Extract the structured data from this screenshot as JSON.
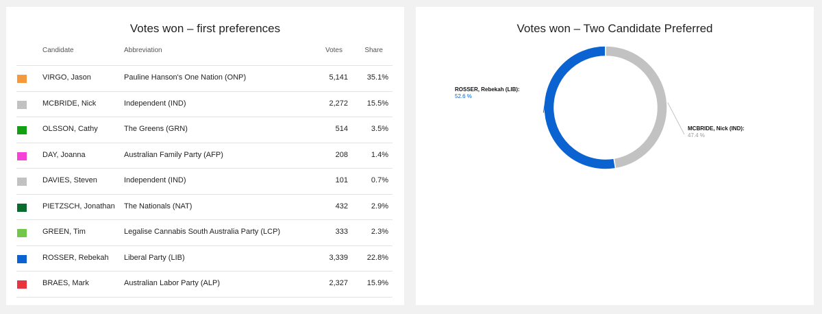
{
  "left": {
    "title": "Votes won – first preferences",
    "headers": {
      "candidate": "Candidate",
      "abbreviation": "Abbreviation",
      "votes": "Votes",
      "share": "Share"
    },
    "rows": [
      {
        "name": "VIRGO, Jason",
        "party": "Pauline Hanson's One Nation (ONP)",
        "votes": "5,141",
        "share": "35.1%",
        "color": "#f59a3c"
      },
      {
        "name": "MCBRIDE, Nick",
        "party": "Independent (IND)",
        "votes": "2,272",
        "share": "15.5%",
        "color": "#c2c2c2"
      },
      {
        "name": "OLSSON, Cathy",
        "party": "The Greens (GRN)",
        "votes": "514",
        "share": "3.5%",
        "color": "#12a012"
      },
      {
        "name": "DAY, Joanna",
        "party": "Australian Family Party (AFP)",
        "votes": "208",
        "share": "1.4%",
        "color": "#f541d6"
      },
      {
        "name": "DAVIES, Steven",
        "party": "Independent (IND)",
        "votes": "101",
        "share": "0.7%",
        "color": "#c2c2c2"
      },
      {
        "name": "PIETZSCH, Jonathan",
        "party": "The Nationals (NAT)",
        "votes": "432",
        "share": "2.9%",
        "color": "#0a6b30"
      },
      {
        "name": "GREEN, Tim",
        "party": "Legalise Cannabis South Australia Party (LCP)",
        "votes": "333",
        "share": "2.3%",
        "color": "#72c64a"
      },
      {
        "name": "ROSSER, Rebekah",
        "party": "Liberal Party (LIB)",
        "votes": "3,339",
        "share": "22.8%",
        "color": "#0a63d0"
      },
      {
        "name": "BRAES, Mark",
        "party": "Australian Labor Party (ALP)",
        "votes": "2,327",
        "share": "15.9%",
        "color": "#e8343f"
      }
    ]
  },
  "right": {
    "title": "Votes won – Two Candidate Preferred"
  },
  "chart_data": [
    {
      "type": "table",
      "title": "Votes won – first preferences",
      "columns": [
        "Candidate",
        "Abbreviation",
        "Votes",
        "Share"
      ],
      "rows": [
        [
          "VIRGO, Jason",
          "Pauline Hanson's One Nation (ONP)",
          5141,
          35.1
        ],
        [
          "MCBRIDE, Nick",
          "Independent (IND)",
          2272,
          15.5
        ],
        [
          "OLSSON, Cathy",
          "The Greens (GRN)",
          514,
          3.5
        ],
        [
          "DAY, Joanna",
          "Australian Family Party (AFP)",
          208,
          1.4
        ],
        [
          "DAVIES, Steven",
          "Independent (IND)",
          101,
          0.7
        ],
        [
          "PIETZSCH, Jonathan",
          "The Nationals (NAT)",
          432,
          2.9
        ],
        [
          "GREEN, Tim",
          "Legalise Cannabis South Australia Party (LCP)",
          333,
          2.3
        ],
        [
          "ROSSER, Rebekah",
          "Liberal Party (LIB)",
          3339,
          22.8
        ],
        [
          "BRAES, Mark",
          "Australian Labor Party (ALP)",
          2327,
          15.9
        ]
      ]
    },
    {
      "type": "pie",
      "title": "Votes won – Two Candidate Preferred",
      "donut": true,
      "slices": [
        {
          "label": "ROSSER, Rebekah (LIB):",
          "value": 52.6,
          "display": "52.6 %",
          "color": "#0a63d0",
          "label_color": "#0a63d0"
        },
        {
          "label": "MCBRIDE, Nick (IND):",
          "value": 47.4,
          "display": "47.4 %",
          "color": "#c2c2c2",
          "label_color": "#9a9a9a"
        }
      ]
    }
  ]
}
